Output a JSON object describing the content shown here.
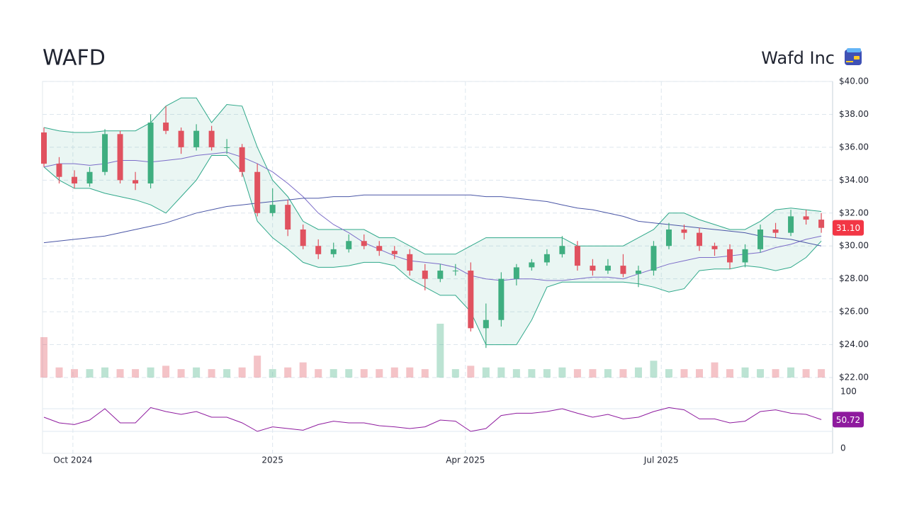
{
  "header": {
    "ticker": "WAFD",
    "company": "Wafd Inc"
  },
  "chart_data": {
    "type": "candlestick",
    "xlim": [
      0,
      51.6
    ],
    "xticks": [
      {
        "value": 1.9,
        "label": "Oct 2024"
      },
      {
        "value": 15.0,
        "label": "2025"
      },
      {
        "value": 27.65,
        "label": "Apr 2025"
      },
      {
        "value": 40.5,
        "label": "Jul 2025"
      }
    ],
    "ylim": [
      22,
      40
    ],
    "yticks": [
      {
        "value": 22,
        "label": "$22.00"
      },
      {
        "value": 24,
        "label": "$24.00"
      },
      {
        "value": 26,
        "label": "$26.00"
      },
      {
        "value": 28,
        "label": "$28.00"
      },
      {
        "value": 30,
        "label": "$30.00"
      },
      {
        "value": 32,
        "label": "$32.00"
      },
      {
        "value": 34,
        "label": "$34.00"
      },
      {
        "value": 36,
        "label": "$36.00"
      },
      {
        "value": 38,
        "label": "$38.00"
      },
      {
        "value": 40,
        "label": "$40.00"
      }
    ],
    "grid": true,
    "up_color": "#3fae80",
    "down_color": "#e0525f",
    "open": [
      36.9,
      35.0,
      34.2,
      33.8,
      34.5,
      36.8,
      34.0,
      33.8,
      37.5,
      37.0,
      36.0,
      37.0,
      36.0,
      36.0,
      34.5,
      32.0,
      32.5,
      31.0,
      30.0,
      29.5,
      29.8,
      30.3,
      30.0,
      29.7,
      29.5,
      28.5,
      28.0,
      28.5,
      28.5,
      25.0,
      25.5,
      28.0,
      28.7,
      29.0,
      29.5,
      30.0,
      28.8,
      28.5,
      28.8,
      28.3,
      28.5,
      30.0,
      31.0,
      30.8,
      30.0,
      29.8,
      29.0,
      29.8,
      31.0,
      30.8,
      31.8,
      31.6
    ],
    "high": [
      37.2,
      35.4,
      34.6,
      34.8,
      37.1,
      37.0,
      34.5,
      38.0,
      38.5,
      37.2,
      37.4,
      37.3,
      36.5,
      36.2,
      35.0,
      33.5,
      32.8,
      31.3,
      30.4,
      30.2,
      30.7,
      30.7,
      30.3,
      30.0,
      29.8,
      28.9,
      28.9,
      28.9,
      29.0,
      26.5,
      28.4,
      28.9,
      29.2,
      29.8,
      30.6,
      30.3,
      29.2,
      29.2,
      29.5,
      28.8,
      30.3,
      31.4,
      31.3,
      31.1,
      30.2,
      30.1,
      30.1,
      31.3,
      31.4,
      32.2,
      32.2,
      32.0
    ],
    "low": [
      34.8,
      33.8,
      33.5,
      33.6,
      34.3,
      33.8,
      33.4,
      33.5,
      36.8,
      35.6,
      35.8,
      35.8,
      35.6,
      34.2,
      31.8,
      31.8,
      30.6,
      29.8,
      29.2,
      29.3,
      29.6,
      29.8,
      29.4,
      29.2,
      28.2,
      27.3,
      27.8,
      28.2,
      24.8,
      23.8,
      25.1,
      27.6,
      28.5,
      28.8,
      29.3,
      28.5,
      28.2,
      28.3,
      28.1,
      27.5,
      28.2,
      29.8,
      30.4,
      29.7,
      29.4,
      28.6,
      28.7,
      29.6,
      30.5,
      30.6,
      31.3,
      30.8
    ],
    "close": [
      35.0,
      34.2,
      33.8,
      34.5,
      36.8,
      34.0,
      33.8,
      37.5,
      37.0,
      36.0,
      37.0,
      36.0,
      36.0,
      34.5,
      32.0,
      32.5,
      31.0,
      30.0,
      29.5,
      29.8,
      30.3,
      30.0,
      29.7,
      29.5,
      28.5,
      28.0,
      28.5,
      28.5,
      25.0,
      25.5,
      28.0,
      28.7,
      29.0,
      29.5,
      30.0,
      28.8,
      28.5,
      28.8,
      28.3,
      28.5,
      30.0,
      31.0,
      30.8,
      30.0,
      29.8,
      29.0,
      29.8,
      31.0,
      30.8,
      31.8,
      31.6,
      31.1
    ],
    "last_label": "31.10",
    "upper": [
      37.2,
      37,
      36.9,
      36.9,
      37,
      37,
      37,
      37.5,
      38.5,
      39,
      39,
      37.5,
      38.6,
      38.5,
      36,
      34,
      33,
      31.5,
      31,
      31,
      31,
      31,
      30.5,
      30.5,
      30,
      29.5,
      29.5,
      29.5,
      30,
      30.5,
      30.5,
      30.5,
      30.5,
      30.5,
      30.5,
      30,
      30,
      30,
      30,
      30.5,
      31,
      32,
      32,
      31.6,
      31.3,
      31,
      31,
      31.5,
      32.2,
      32.3,
      32.2,
      32.1
    ],
    "lower": [
      34.8,
      34,
      33.5,
      33.5,
      33.2,
      33,
      32.8,
      32.5,
      32,
      33,
      34,
      35.5,
      35.5,
      34.5,
      31.5,
      30.5,
      29.8,
      29,
      28.7,
      28.7,
      28.8,
      29,
      29,
      28.8,
      28,
      27.5,
      27,
      27,
      26,
      24,
      24,
      24,
      25.5,
      27.5,
      27.8,
      27.8,
      27.8,
      27.8,
      27.8,
      27.7,
      27.5,
      27.2,
      27.4,
      28.5,
      28.6,
      28.6,
      28.8,
      28.7,
      28.5,
      28.7,
      29.3,
      30.3
    ],
    "band_color": "#2fa88a",
    "ma50": [
      34.8,
      35,
      35,
      34.9,
      35,
      35.2,
      35.2,
      35.1,
      35.2,
      35.3,
      35.5,
      35.6,
      35.7,
      35.4,
      35,
      34.5,
      33.8,
      33,
      32,
      31.3,
      30.8,
      30.2,
      29.8,
      29.4,
      29.1,
      29,
      28.9,
      28.7,
      28.2,
      28,
      27.9,
      28,
      28,
      27.9,
      27.9,
      28,
      28.1,
      28.1,
      28,
      28.3,
      28.6,
      28.9,
      29.1,
      29.3,
      29.3,
      29.4,
      29.5,
      29.6,
      29.9,
      30.1,
      30.4,
      30.6
    ],
    "ma50_color": "#7b6cc8",
    "ma200": [
      30.2,
      30.3,
      30.4,
      30.5,
      30.6,
      30.8,
      31,
      31.2,
      31.4,
      31.7,
      32,
      32.2,
      32.4,
      32.5,
      32.6,
      32.7,
      32.8,
      32.9,
      32.9,
      33,
      33,
      33.1,
      33.1,
      33.1,
      33.1,
      33.1,
      33.1,
      33.1,
      33.1,
      33,
      33,
      32.9,
      32.8,
      32.7,
      32.5,
      32.3,
      32.2,
      32,
      31.8,
      31.5,
      31.4,
      31.3,
      31.2,
      31.1,
      31,
      30.9,
      30.8,
      30.6,
      30.5,
      30.4,
      30.2,
      30.0
    ],
    "ma200_color": "#4a56a6",
    "volume": [
      2.4,
      0.6,
      0.5,
      0.5,
      0.6,
      0.5,
      0.5,
      0.6,
      0.7,
      0.5,
      0.6,
      0.5,
      0.5,
      0.6,
      1.3,
      0.5,
      0.6,
      0.9,
      0.5,
      0.5,
      0.5,
      0.5,
      0.5,
      0.6,
      0.6,
      0.5,
      3.2,
      0.5,
      0.7,
      0.6,
      0.6,
      0.5,
      0.5,
      0.5,
      0.6,
      0.5,
      0.5,
      0.5,
      0.5,
      0.6,
      1.0,
      0.5,
      0.5,
      0.5,
      0.9,
      0.5,
      0.6,
      0.5,
      0.5,
      0.6,
      0.5,
      0.5
    ],
    "vlim": [
      0,
      4
    ],
    "rsi": {
      "color": "#8e1a9e",
      "ylim": [
        0,
        100
      ],
      "yticks": [
        0,
        100
      ],
      "levels": [
        30,
        70
      ],
      "values": [
        55,
        45,
        42,
        50,
        70,
        45,
        45,
        72,
        65,
        60,
        65,
        55,
        55,
        45,
        30,
        38,
        35,
        32,
        42,
        48,
        45,
        45,
        40,
        38,
        35,
        38,
        50,
        48,
        30,
        35,
        58,
        62,
        62,
        65,
        70,
        62,
        55,
        60,
        52,
        55,
        65,
        72,
        68,
        52,
        52,
        45,
        48,
        65,
        68,
        62,
        60,
        50.72
      ]
    }
  }
}
